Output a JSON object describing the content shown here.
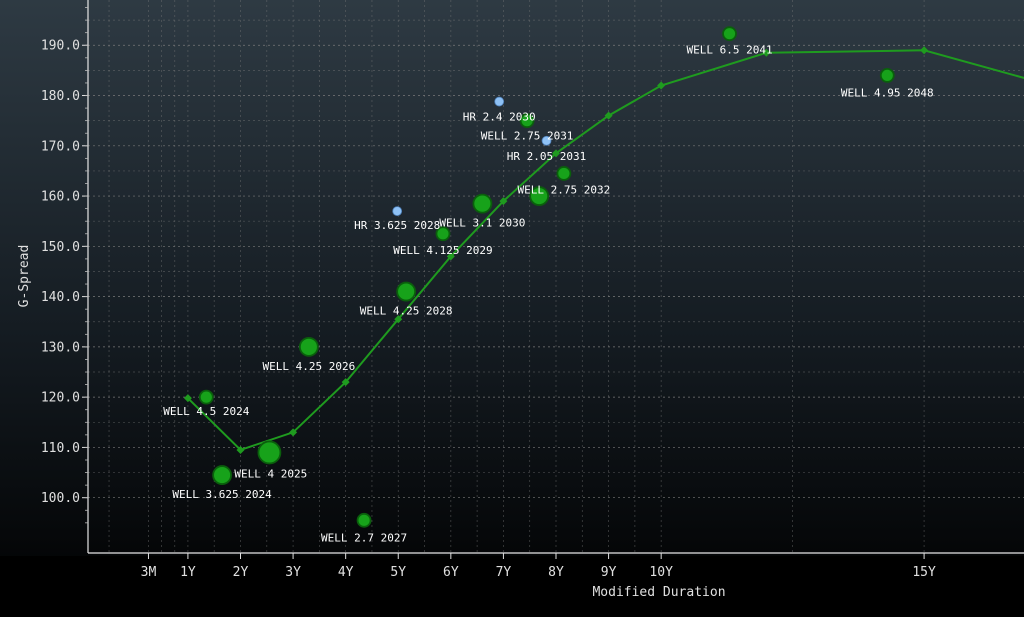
{
  "chart_data": {
    "type": "scatter",
    "xlabel": "Modified Duration",
    "ylabel": "G-Spread",
    "xlim": [
      -0.9,
      16.9
    ],
    "ylim": [
      89,
      199
    ],
    "grid": true,
    "x_ticks": [
      {
        "value": 0.25,
        "label": "3M"
      },
      {
        "value": 1,
        "label": "1Y"
      },
      {
        "value": 2,
        "label": "2Y"
      },
      {
        "value": 3,
        "label": "3Y"
      },
      {
        "value": 4,
        "label": "4Y"
      },
      {
        "value": 5,
        "label": "5Y"
      },
      {
        "value": 6,
        "label": "6Y"
      },
      {
        "value": 7,
        "label": "7Y"
      },
      {
        "value": 8,
        "label": "8Y"
      },
      {
        "value": 9,
        "label": "9Y"
      },
      {
        "value": 10,
        "label": "10Y"
      },
      {
        "value": 15,
        "label": "15Y"
      }
    ],
    "y_ticks": [
      {
        "value": 100,
        "label": "100.0"
      },
      {
        "value": 110,
        "label": "110.0"
      },
      {
        "value": 120,
        "label": "120.0"
      },
      {
        "value": 130,
        "label": "130.0"
      },
      {
        "value": 140,
        "label": "140.0"
      },
      {
        "value": 150,
        "label": "150.0"
      },
      {
        "value": 160,
        "label": "160.0"
      },
      {
        "value": 170,
        "label": "170.0"
      },
      {
        "value": 180,
        "label": "180.0"
      },
      {
        "value": 190,
        "label": "190.0"
      }
    ],
    "curve": {
      "color": "#1f9b1f",
      "points": [
        {
          "x": 1,
          "y": 119.8
        },
        {
          "x": 2,
          "y": 109.5
        },
        {
          "x": 3,
          "y": 113
        },
        {
          "x": 4,
          "y": 123
        },
        {
          "x": 5,
          "y": 135.5
        },
        {
          "x": 6,
          "y": 148
        },
        {
          "x": 7,
          "y": 159
        },
        {
          "x": 8,
          "y": 168.5
        },
        {
          "x": 9,
          "y": 176
        },
        {
          "x": 10,
          "y": 182
        },
        {
          "x": 12,
          "y": 188.5
        },
        {
          "x": 15,
          "y": 189
        },
        {
          "x": 17,
          "y": 183.2
        }
      ]
    },
    "points": [
      {
        "label": "WELL 4.5 2024",
        "x": 1.35,
        "y": 120,
        "size": "small",
        "issuer": "WELL"
      },
      {
        "label": "WELL 3.625 2024",
        "x": 1.65,
        "y": 104.5,
        "size": "medium",
        "issuer": "WELL"
      },
      {
        "label": "WELL 4 2025",
        "x": 2.55,
        "y": 109,
        "size": "large",
        "issuer": "WELL"
      },
      {
        "label": "WELL 4.25 2026",
        "x": 3.3,
        "y": 130,
        "size": "medium",
        "issuer": "WELL"
      },
      {
        "label": "WELL 2.7 2027",
        "x": 4.35,
        "y": 95.5,
        "size": "small",
        "issuer": "WELL"
      },
      {
        "label": "WELL 4.25 2028",
        "x": 5.15,
        "y": 141,
        "size": "medium",
        "issuer": "WELL"
      },
      {
        "label": "HR 3.625 2028",
        "x": 4.98,
        "y": 157,
        "size": "tiny",
        "issuer": "HR"
      },
      {
        "label": "WELL 4.125 2029",
        "x": 5.85,
        "y": 152.5,
        "size": "small",
        "issuer": "WELL"
      },
      {
        "label": "WELL 3.1 2030",
        "x": 6.6,
        "y": 158.5,
        "size": "medium",
        "issuer": "WELL"
      },
      {
        "label": "HR 2.4 2030",
        "x": 6.92,
        "y": 178.8,
        "size": "tiny",
        "issuer": "HR"
      },
      {
        "label": "WELL 2.75 2031",
        "x": 7.45,
        "y": 175,
        "size": "small",
        "issuer": "WELL"
      },
      {
        "label": "HR 2.05 2031",
        "x": 7.82,
        "y": 171,
        "size": "tiny",
        "issuer": "HR"
      },
      {
        "label": "WELL 2.75 2032",
        "x": 8.15,
        "y": 164.5,
        "size": "small",
        "issuer": "WELL"
      },
      {
        "label": "",
        "x": 7.68,
        "y": 160,
        "size": "medium",
        "issuer": "WELL"
      },
      {
        "label": "WELL 6.5 2041",
        "x": 11.3,
        "y": 192.3,
        "size": "small",
        "issuer": "WELL"
      },
      {
        "label": "WELL 4.95 2048",
        "x": 14.3,
        "y": 184,
        "size": "small",
        "issuer": "WELL"
      }
    ]
  }
}
